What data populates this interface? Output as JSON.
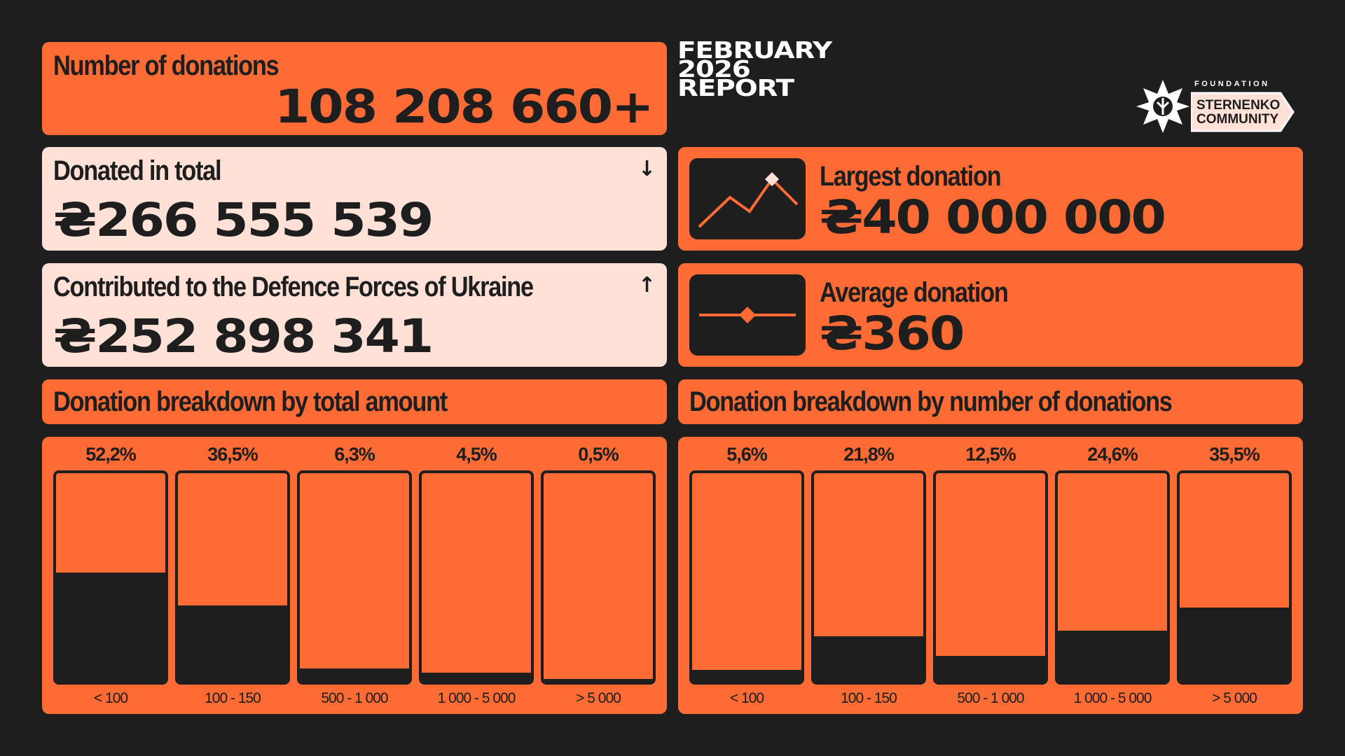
{
  "report": {
    "title_lines": [
      "FEBRUARY",
      "2026",
      "REPORT"
    ]
  },
  "logo": {
    "foundation": "FOUNDATION",
    "line1": "STERNENKO",
    "line2": "COMMUNITY"
  },
  "stats": {
    "donations_count": {
      "label": "Number of donations",
      "value": "108 208 660+"
    },
    "donated_total": {
      "label": "Donated in total",
      "value": "₴266 555 539",
      "arrow": "↓"
    },
    "contributed": {
      "label": "Contributed to the Defence Forces of Ukraine",
      "value": "₴252 898 341",
      "arrow": "↑"
    },
    "largest": {
      "label": "Largest donation",
      "value": "₴40 000 000",
      "icon": "line-chart-peak-icon"
    },
    "average": {
      "label": "Average donation",
      "value": "₴360",
      "icon": "slider-diamond-icon"
    }
  },
  "colors": {
    "background": "#1e1e1e",
    "accent": "#ff6b35",
    "light_card": "#ffe1d8",
    "dark": "#1e1e1e"
  },
  "chart_data": [
    {
      "type": "bar",
      "title": "Donation breakdown by total amount",
      "categories": [
        "< 100",
        "100 - 150",
        "500 - 1 000",
        "1 000 - 5 000",
        "> 5 000"
      ],
      "values": [
        52.2,
        36.5,
        6.3,
        4.5,
        0.5
      ],
      "labels": [
        "52,2%",
        "36,5%",
        "6,3%",
        "4,5%",
        "0,5%"
      ],
      "ylim": [
        0,
        100
      ]
    },
    {
      "type": "bar",
      "title": "Donation breakdown by number of donations",
      "categories": [
        "< 100",
        "100 - 150",
        "500 - 1 000",
        "1 000 - 5 000",
        "> 5 000"
      ],
      "values": [
        5.6,
        21.8,
        12.5,
        24.6,
        35.5
      ],
      "labels": [
        "5,6%",
        "21,8%",
        "12,5%",
        "24,6%",
        "35,5%"
      ],
      "ylim": [
        0,
        100
      ]
    }
  ]
}
